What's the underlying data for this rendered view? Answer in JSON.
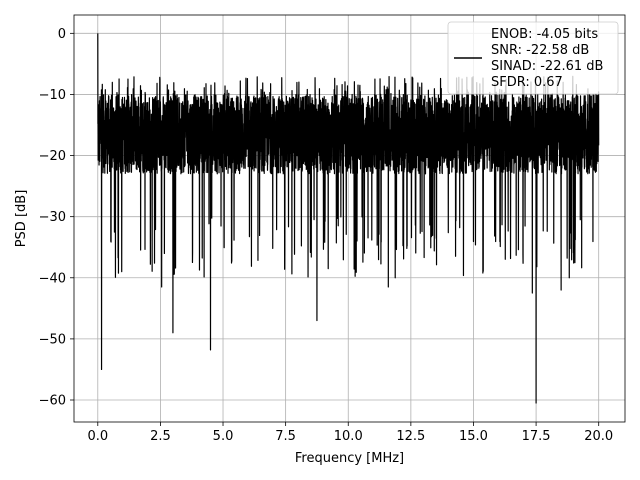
{
  "chart_data": {
    "type": "line",
    "title": "",
    "xlabel": "Frequency [MHz]",
    "ylabel": "PSD [dB]",
    "xlim": [
      -0.95,
      21.05
    ],
    "ylim": [
      -63.6,
      3.0
    ],
    "xticks": [
      0.0,
      2.5,
      5.0,
      7.5,
      10.0,
      12.5,
      15.0,
      17.5,
      20.0
    ],
    "xtick_labels": [
      "0.0",
      "2.5",
      "5.0",
      "7.5",
      "10.0",
      "12.5",
      "15.0",
      "17.5",
      "20.0"
    ],
    "yticks": [
      0,
      -10,
      -20,
      -30,
      -40,
      -50,
      -60
    ],
    "ytick_labels": [
      "0",
      "−10",
      "−20",
      "−30",
      "−40",
      "−50",
      "−60"
    ],
    "grid": true,
    "legend_position": "top-right",
    "series": [
      {
        "color": "#000000",
        "x_start": 0.0,
        "x_end": 20.0,
        "typical_range": [
          -30,
          -10
        ],
        "upper_envelope": -7,
        "notable_points": [
          {
            "x": 0.0,
            "y": 0.0
          },
          {
            "x": 0.15,
            "y": -55.0
          },
          {
            "x": 2.55,
            "y": -41.5
          },
          {
            "x": 3.0,
            "y": -49.0
          },
          {
            "x": 4.5,
            "y": -51.8
          },
          {
            "x": 8.75,
            "y": -47.0
          },
          {
            "x": 17.5,
            "y": -60.5
          },
          {
            "x": 17.35,
            "y": -42.5
          },
          {
            "x": 18.5,
            "y": -42.0
          },
          {
            "x": 11.6,
            "y": -41.5
          }
        ]
      }
    ],
    "legend_lines": [
      "ENOB: -4.05 bits",
      "SNR: -22.58 dB",
      "SINAD: -22.61 dB",
      "SFDR: 0.67"
    ]
  }
}
